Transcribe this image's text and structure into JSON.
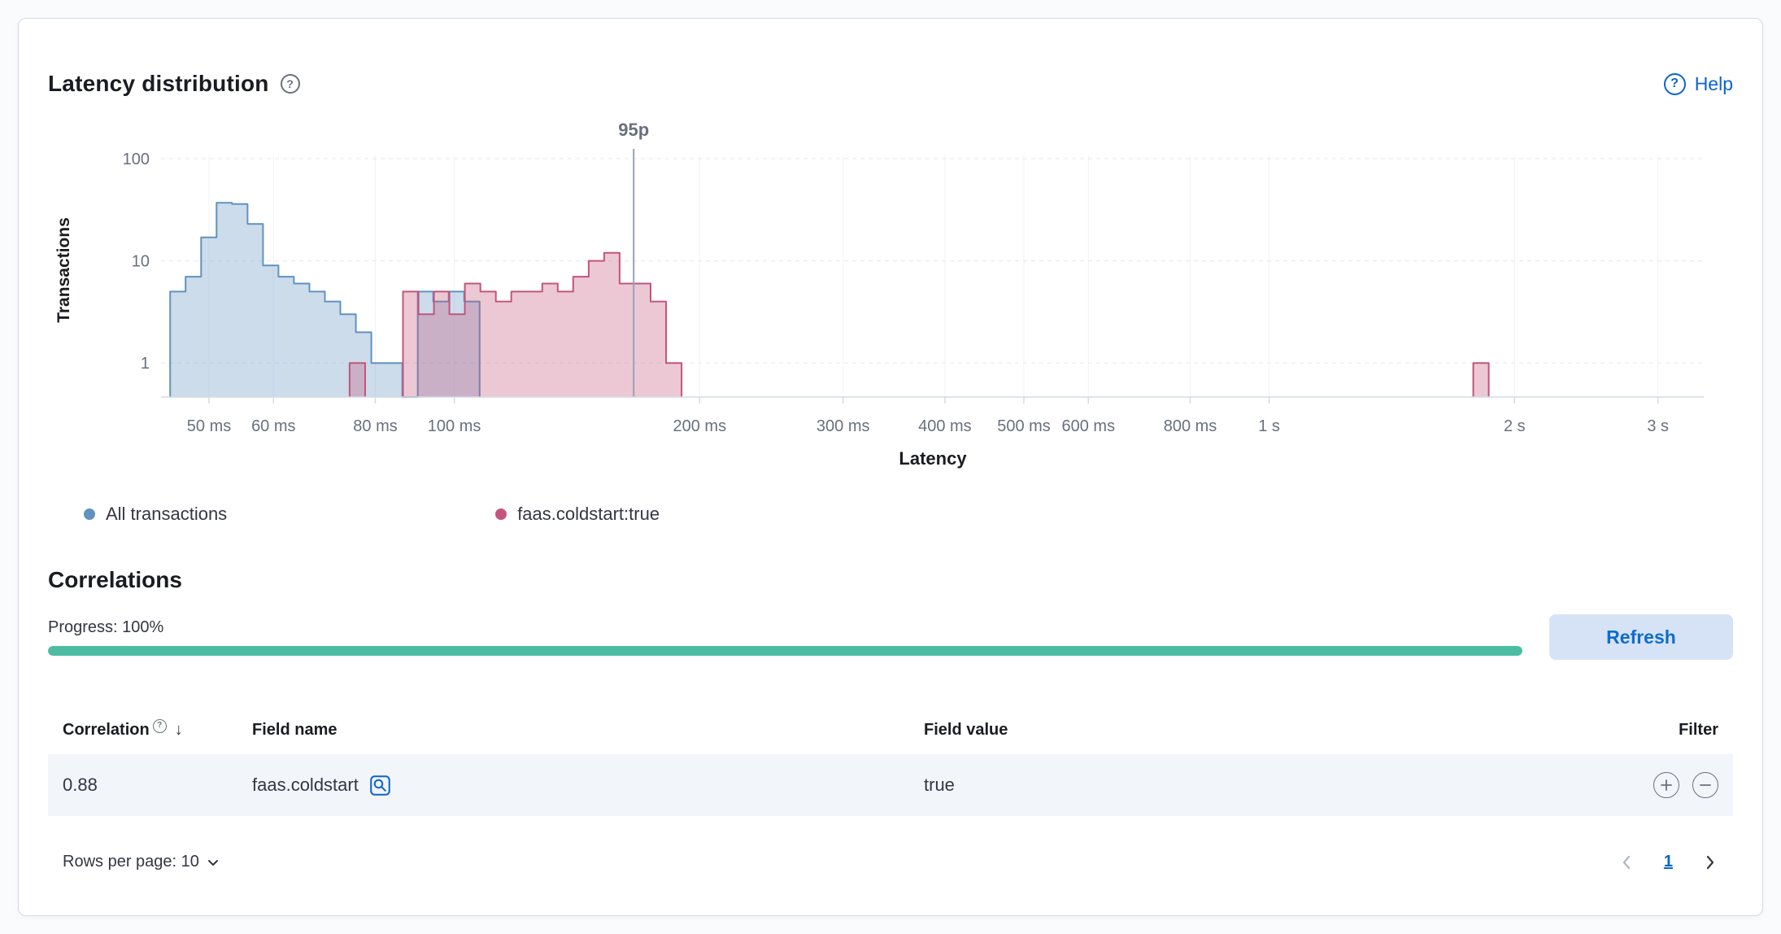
{
  "panel": {
    "title": "Latency distribution",
    "help_label": "Help"
  },
  "icons": {
    "question_mark": "?",
    "sort_desc": "↓"
  },
  "chart_data": {
    "type": "histogram",
    "title": "Latency distribution",
    "xlabel": "Latency",
    "ylabel": "Transactions",
    "x_scale": "log",
    "y_scale": "log",
    "x_ticks": [
      {
        "value": 50,
        "label": "50 ms"
      },
      {
        "value": 60,
        "label": "60 ms"
      },
      {
        "value": 80,
        "label": "80 ms"
      },
      {
        "value": 100,
        "label": "100 ms"
      },
      {
        "value": 200,
        "label": "200 ms"
      },
      {
        "value": 300,
        "label": "300 ms"
      },
      {
        "value": 400,
        "label": "400 ms"
      },
      {
        "value": 500,
        "label": "500 ms"
      },
      {
        "value": 600,
        "label": "600 ms"
      },
      {
        "value": 800,
        "label": "800 ms"
      },
      {
        "value": 1000,
        "label": "1 s"
      },
      {
        "value": 2000,
        "label": "2 s"
      },
      {
        "value": 3000,
        "label": "3 s"
      }
    ],
    "y_ticks": [
      100,
      10,
      1
    ],
    "annotation": {
      "label": "95p",
      "value_ms": 166
    },
    "bin_ratio": 1.0447,
    "series": [
      {
        "name": "All transactions",
        "color": "#6092C0",
        "runs": [
          {
            "start_ms": 44.8,
            "counts": [
              5,
              7,
              17,
              37,
              36,
              23,
              9,
              7,
              6,
              5,
              4,
              3,
              2,
              1,
              1,
              0,
              5,
              4,
              5,
              4
            ]
          }
        ]
      },
      {
        "name": "faas.coldstart:true",
        "color": "#C4547A",
        "runs": [
          {
            "start_ms": 74.4,
            "counts": [
              1
            ]
          },
          {
            "start_ms": 86.5,
            "counts": [
              5,
              3,
              5,
              3,
              6,
              5,
              4,
              5,
              5,
              6,
              5,
              7,
              10,
              12,
              6,
              6,
              4,
              1
            ]
          },
          {
            "start_ms": 1780,
            "counts": [
              1
            ]
          }
        ]
      }
    ]
  },
  "legend": [
    {
      "label": "All transactions",
      "color": "#6092C0"
    },
    {
      "label": "faas.coldstart:true",
      "color": "#C4547A"
    }
  ],
  "correlations": {
    "title": "Correlations",
    "progress_label": "Progress: 100%",
    "progress_value": 100,
    "progress_color": "#4CBDA2",
    "refresh_label": "Refresh",
    "table": {
      "headers": [
        "Correlation",
        "Field name",
        "Field value",
        "Filter"
      ],
      "rows": [
        {
          "correlation": "0.88",
          "field_name": "faas.coldstart",
          "field_value": "true"
        }
      ]
    },
    "rows_per_page_label": "Rows per page: 10",
    "page": "1"
  }
}
